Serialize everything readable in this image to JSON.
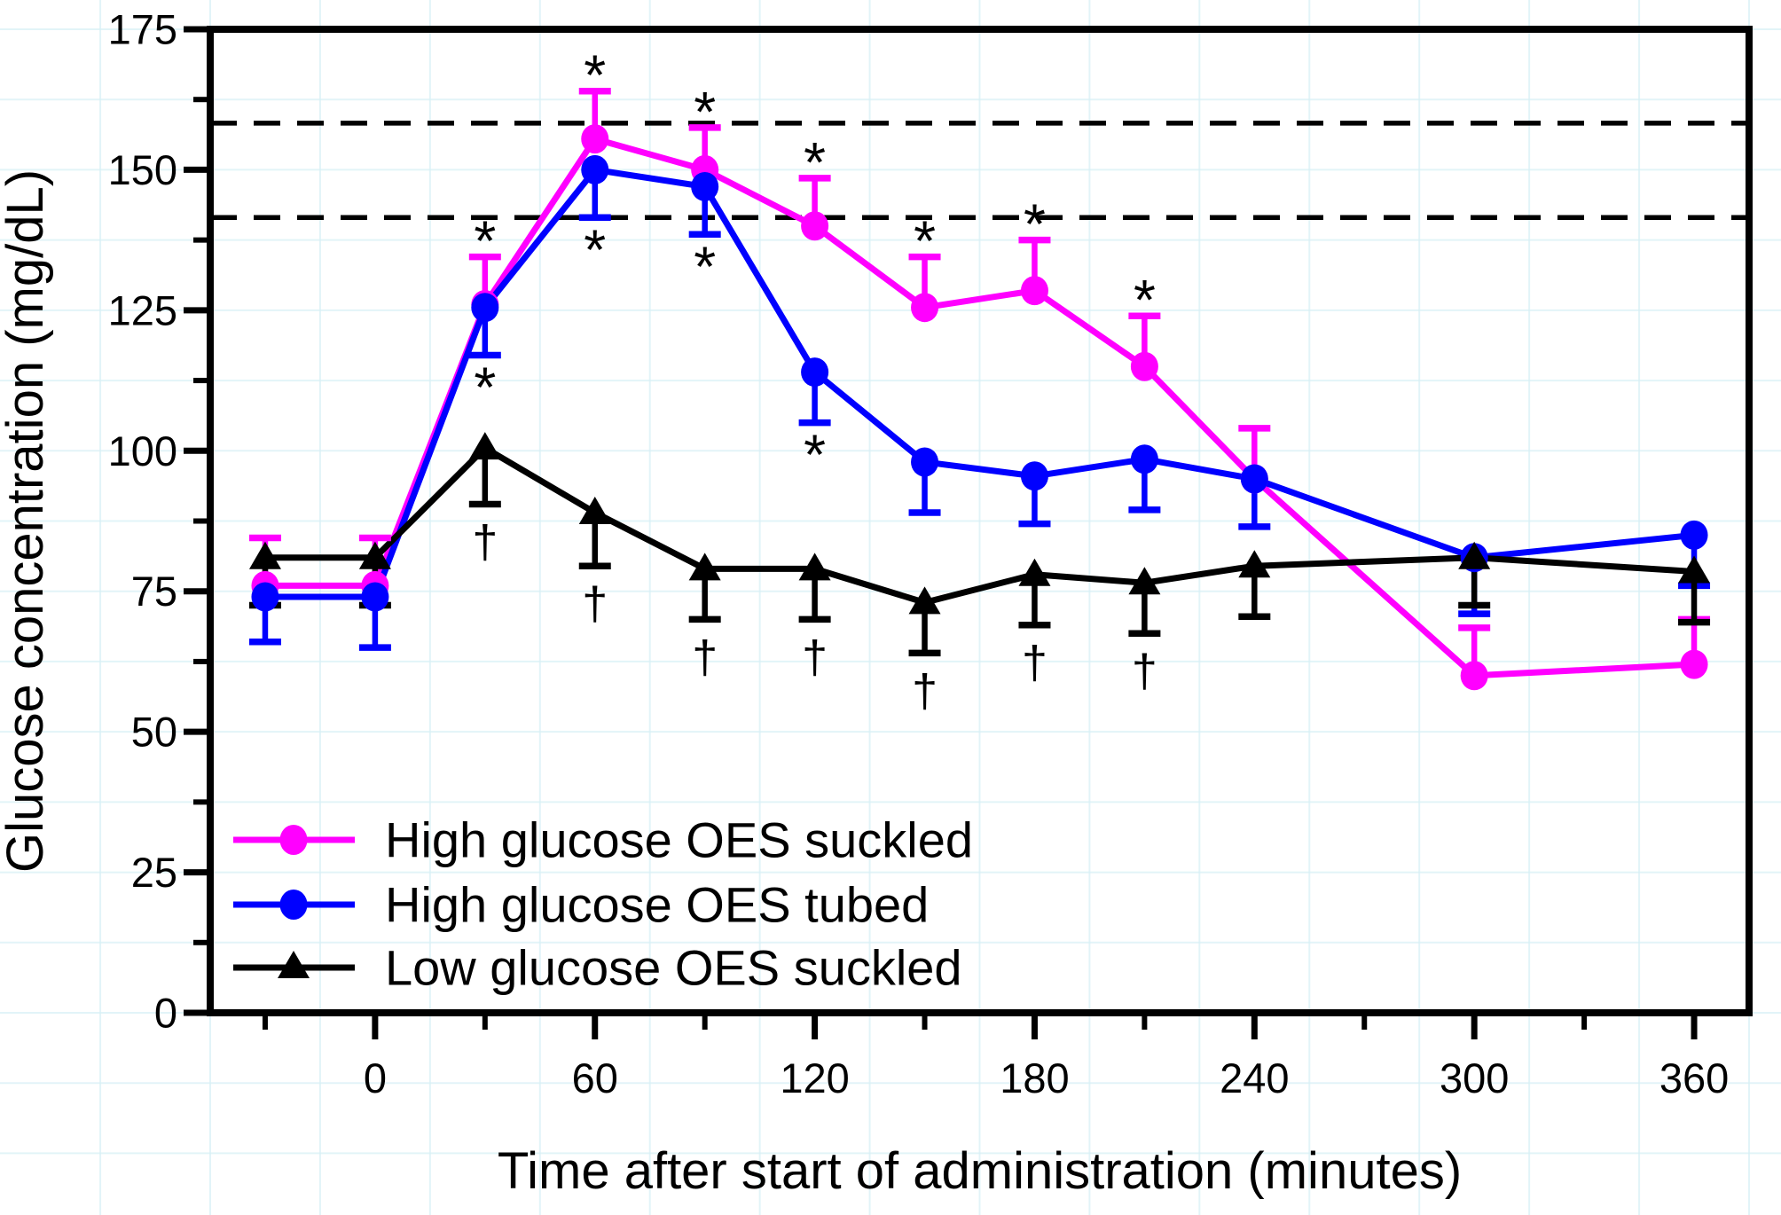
{
  "figure": {
    "kind": "scientific line chart with error bars",
    "background": "#ffffff"
  },
  "chart_data": {
    "type": "line",
    "title": "",
    "xlabel": "Time after start of administration (minutes)",
    "ylabel": "Glucose concentration (mg/dL)",
    "xlim": [
      -45,
      375
    ],
    "ylim": [
      0,
      175
    ],
    "x_major_ticks": [
      0,
      60,
      120,
      180,
      240,
      300,
      360
    ],
    "x_minor_ticks": [
      -30,
      30,
      90,
      150,
      210,
      270,
      330
    ],
    "y_major_ticks": [
      0,
      25,
      50,
      75,
      100,
      125,
      150,
      175
    ],
    "y_minor_ticks": [
      12.5,
      37.5,
      62.5,
      87.5,
      112.5,
      137.5,
      162.5
    ],
    "reference_lines_mg_dl": [
      158.3,
      141.5
    ],
    "grid_color": "#d7f0f6",
    "x": [
      -30,
      0,
      30,
      60,
      90,
      120,
      150,
      180,
      210,
      240,
      300,
      360
    ],
    "series": [
      {
        "name": "High glucose OES suckled",
        "color": "#ff00ff",
        "marker": "circle",
        "error_direction": "up",
        "values": [
          76,
          76,
          126,
          155.5,
          150,
          140,
          125.5,
          128.5,
          115,
          95,
          60,
          62
        ],
        "errors": [
          8.5,
          8.5,
          8.5,
          8.5,
          7.5,
          8.5,
          9,
          9,
          9,
          9,
          8.5,
          8
        ]
      },
      {
        "name": "High glucose OES tubed",
        "color": "#0000ff",
        "marker": "circle",
        "error_direction": "down",
        "values": [
          74,
          74,
          125.5,
          150,
          147,
          114,
          98,
          95.5,
          98.5,
          95,
          81,
          85
        ],
        "errors": [
          8,
          9,
          8.5,
          8.5,
          8.5,
          9,
          9,
          8.5,
          9,
          8.5,
          10,
          9
        ]
      },
      {
        "name": "Low glucose OES suckled",
        "color": "#000000",
        "marker": "triangle",
        "error_direction": "down",
        "values": [
          81,
          81,
          100.5,
          89,
          79,
          79,
          73,
          78,
          76.5,
          79.5,
          81,
          78.5
        ],
        "errors": [
          8.5,
          8.5,
          10,
          9.5,
          9,
          9,
          9,
          9,
          9,
          9,
          8.5,
          9
        ]
      }
    ],
    "annotations": {
      "asterisk_symbol": "*",
      "dagger_symbol": "†",
      "asterisks_above_high_suckled_at": [
        30,
        60,
        90,
        120,
        150,
        180,
        210
      ],
      "asterisks_below_high_tubed_at": [
        30,
        60,
        90,
        120
      ],
      "daggers_below_low_suckled_at": [
        30,
        60,
        90,
        120,
        150,
        180,
        210
      ]
    },
    "legend": {
      "position": "lower-left-inside",
      "items": [
        {
          "label": "High glucose OES suckled",
          "color": "#ff00ff",
          "marker": "circle"
        },
        {
          "label": "High glucose OES tubed",
          "color": "#0000ff",
          "marker": "circle"
        },
        {
          "label": "Low glucose OES suckled",
          "color": "#000000",
          "marker": "triangle"
        }
      ]
    }
  }
}
